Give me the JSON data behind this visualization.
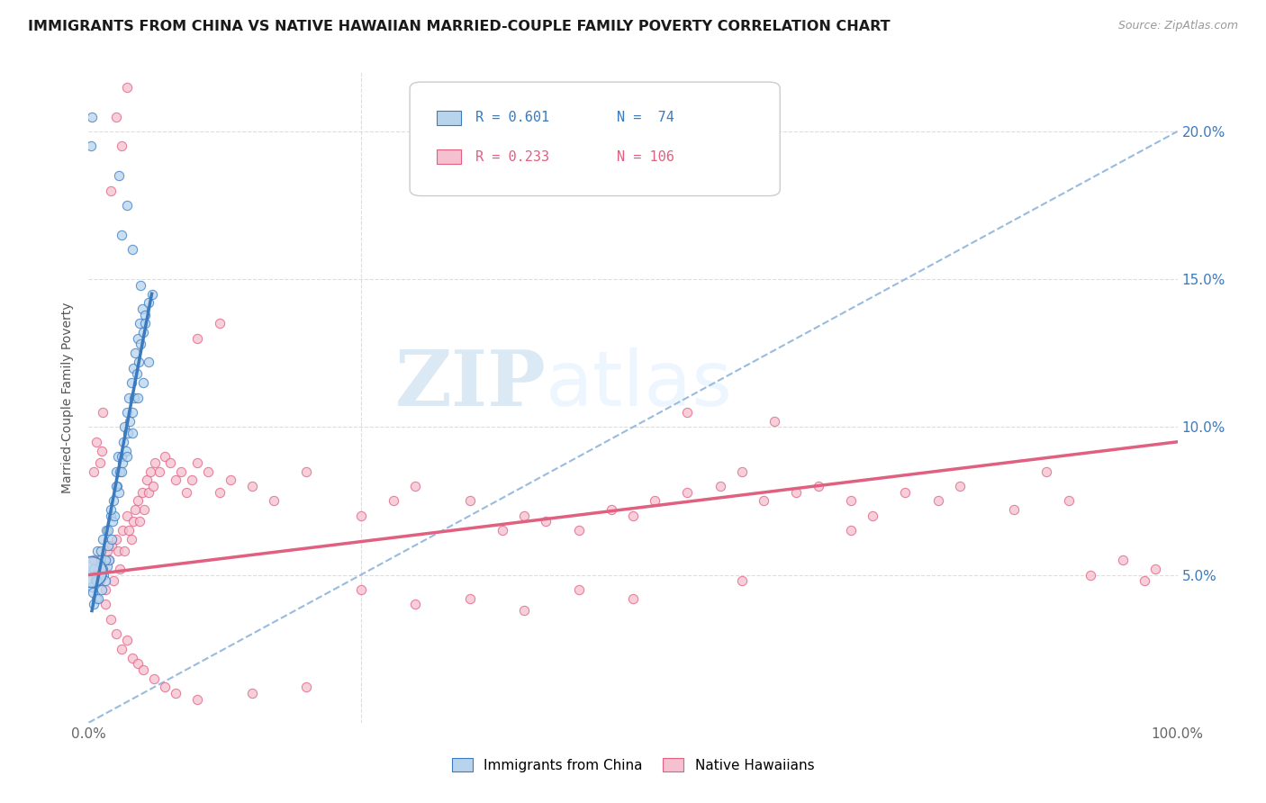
{
  "title": "IMMIGRANTS FROM CHINA VS NATIVE HAWAIIAN MARRIED-COUPLE FAMILY POVERTY CORRELATION CHART",
  "source": "Source: ZipAtlas.com",
  "ylabel": "Married-Couple Family Poverty",
  "legend_label_blue": "Immigrants from China",
  "legend_label_pink": "Native Hawaiians",
  "r_blue": "R = 0.601",
  "n_blue": "N =  74",
  "r_pink": "R = 0.233",
  "n_pink": "N = 106",
  "blue_color": "#b8d4ed",
  "blue_line_color": "#3a7abf",
  "pink_color": "#f5c0d0",
  "pink_line_color": "#e06080",
  "watermark_zip": "ZIP",
  "watermark_atlas": "atlas",
  "background_color": "#ffffff",
  "blue_scatter": [
    [
      0.5,
      5.2
    ],
    [
      0.6,
      4.8
    ],
    [
      0.7,
      4.2
    ],
    [
      0.8,
      5.8
    ],
    [
      1.0,
      5.0
    ],
    [
      1.1,
      5.5
    ],
    [
      1.2,
      4.5
    ],
    [
      1.3,
      6.2
    ],
    [
      1.4,
      5.0
    ],
    [
      1.5,
      4.8
    ],
    [
      1.6,
      6.5
    ],
    [
      1.7,
      5.3
    ],
    [
      1.8,
      6.0
    ],
    [
      1.9,
      5.5
    ],
    [
      2.0,
      7.0
    ],
    [
      2.1,
      6.2
    ],
    [
      2.2,
      6.8
    ],
    [
      2.3,
      7.5
    ],
    [
      2.4,
      7.0
    ],
    [
      2.5,
      8.5
    ],
    [
      2.6,
      8.0
    ],
    [
      2.7,
      9.0
    ],
    [
      2.8,
      7.8
    ],
    [
      2.9,
      8.5
    ],
    [
      3.0,
      9.0
    ],
    [
      3.1,
      8.8
    ],
    [
      3.2,
      9.5
    ],
    [
      3.3,
      10.0
    ],
    [
      3.4,
      9.2
    ],
    [
      3.5,
      10.5
    ],
    [
      3.6,
      9.8
    ],
    [
      3.7,
      11.0
    ],
    [
      3.8,
      10.2
    ],
    [
      3.9,
      11.5
    ],
    [
      4.0,
      10.5
    ],
    [
      4.1,
      12.0
    ],
    [
      4.2,
      11.0
    ],
    [
      4.3,
      12.5
    ],
    [
      4.4,
      11.8
    ],
    [
      4.5,
      13.0
    ],
    [
      4.6,
      12.2
    ],
    [
      4.7,
      13.5
    ],
    [
      4.8,
      12.8
    ],
    [
      4.9,
      14.0
    ],
    [
      5.0,
      13.2
    ],
    [
      5.2,
      13.8
    ],
    [
      5.5,
      14.2
    ],
    [
      5.8,
      14.5
    ],
    [
      0.3,
      4.6
    ],
    [
      0.4,
      4.4
    ],
    [
      0.5,
      4.0
    ],
    [
      0.6,
      5.0
    ],
    [
      0.7,
      4.8
    ],
    [
      0.9,
      4.2
    ],
    [
      1.1,
      5.8
    ],
    [
      1.3,
      5.2
    ],
    [
      1.5,
      5.5
    ],
    [
      1.8,
      6.5
    ],
    [
      2.0,
      7.2
    ],
    [
      2.5,
      8.0
    ],
    [
      3.0,
      8.5
    ],
    [
      3.5,
      9.0
    ],
    [
      4.0,
      9.8
    ],
    [
      4.5,
      11.0
    ],
    [
      5.0,
      11.5
    ],
    [
      5.5,
      12.2
    ],
    [
      2.8,
      18.5
    ],
    [
      3.5,
      17.5
    ],
    [
      3.0,
      16.5
    ],
    [
      4.0,
      16.0
    ],
    [
      4.8,
      14.8
    ],
    [
      5.2,
      13.5
    ],
    [
      0.2,
      19.5
    ],
    [
      0.3,
      20.5
    ]
  ],
  "pink_scatter": [
    [
      0.5,
      5.5
    ],
    [
      0.8,
      5.0
    ],
    [
      1.0,
      4.8
    ],
    [
      1.2,
      5.2
    ],
    [
      1.5,
      4.5
    ],
    [
      1.7,
      5.8
    ],
    [
      1.9,
      5.5
    ],
    [
      2.1,
      6.0
    ],
    [
      2.3,
      4.8
    ],
    [
      2.5,
      6.2
    ],
    [
      2.7,
      5.8
    ],
    [
      2.9,
      5.2
    ],
    [
      3.1,
      6.5
    ],
    [
      3.3,
      5.8
    ],
    [
      3.5,
      7.0
    ],
    [
      3.7,
      6.5
    ],
    [
      3.9,
      6.2
    ],
    [
      4.1,
      6.8
    ],
    [
      4.3,
      7.2
    ],
    [
      4.5,
      7.5
    ],
    [
      4.7,
      6.8
    ],
    [
      4.9,
      7.8
    ],
    [
      5.1,
      7.2
    ],
    [
      5.3,
      8.2
    ],
    [
      5.5,
      7.8
    ],
    [
      5.7,
      8.5
    ],
    [
      5.9,
      8.0
    ],
    [
      6.1,
      8.8
    ],
    [
      6.5,
      8.5
    ],
    [
      7.0,
      9.0
    ],
    [
      7.5,
      8.8
    ],
    [
      8.0,
      8.2
    ],
    [
      8.5,
      8.5
    ],
    [
      9.0,
      7.8
    ],
    [
      9.5,
      8.2
    ],
    [
      10.0,
      8.8
    ],
    [
      11.0,
      8.5
    ],
    [
      12.0,
      7.8
    ],
    [
      13.0,
      8.2
    ],
    [
      15.0,
      8.0
    ],
    [
      17.0,
      7.5
    ],
    [
      20.0,
      8.5
    ],
    [
      25.0,
      7.0
    ],
    [
      28.0,
      7.5
    ],
    [
      30.0,
      8.0
    ],
    [
      35.0,
      7.5
    ],
    [
      38.0,
      6.5
    ],
    [
      40.0,
      7.0
    ],
    [
      42.0,
      6.8
    ],
    [
      45.0,
      6.5
    ],
    [
      48.0,
      7.2
    ],
    [
      50.0,
      7.0
    ],
    [
      52.0,
      7.5
    ],
    [
      55.0,
      7.8
    ],
    [
      58.0,
      8.0
    ],
    [
      60.0,
      8.5
    ],
    [
      62.0,
      7.5
    ],
    [
      65.0,
      7.8
    ],
    [
      67.0,
      8.0
    ],
    [
      70.0,
      7.5
    ],
    [
      72.0,
      7.0
    ],
    [
      75.0,
      7.8
    ],
    [
      78.0,
      7.5
    ],
    [
      80.0,
      8.0
    ],
    [
      85.0,
      7.2
    ],
    [
      88.0,
      8.5
    ],
    [
      90.0,
      7.5
    ],
    [
      92.0,
      5.0
    ],
    [
      95.0,
      5.5
    ],
    [
      97.0,
      4.8
    ],
    [
      98.0,
      5.2
    ],
    [
      1.5,
      4.0
    ],
    [
      2.0,
      3.5
    ],
    [
      2.5,
      3.0
    ],
    [
      3.0,
      2.5
    ],
    [
      3.5,
      2.8
    ],
    [
      4.0,
      2.2
    ],
    [
      4.5,
      2.0
    ],
    [
      5.0,
      1.8
    ],
    [
      6.0,
      1.5
    ],
    [
      7.0,
      1.2
    ],
    [
      8.0,
      1.0
    ],
    [
      10.0,
      0.8
    ],
    [
      15.0,
      1.0
    ],
    [
      20.0,
      1.2
    ],
    [
      2.5,
      20.5
    ],
    [
      3.0,
      19.5
    ],
    [
      3.5,
      21.5
    ],
    [
      2.0,
      18.0
    ],
    [
      1.0,
      8.8
    ],
    [
      1.2,
      9.2
    ],
    [
      25.0,
      4.5
    ],
    [
      30.0,
      4.0
    ],
    [
      35.0,
      4.2
    ],
    [
      40.0,
      3.8
    ],
    [
      45.0,
      4.5
    ],
    [
      50.0,
      4.2
    ],
    [
      60.0,
      4.8
    ],
    [
      70.0,
      6.5
    ],
    [
      10.0,
      13.0
    ],
    [
      12.0,
      13.5
    ],
    [
      0.5,
      8.5
    ],
    [
      0.7,
      9.5
    ],
    [
      1.3,
      10.5
    ],
    [
      55.0,
      10.5
    ],
    [
      63.0,
      10.2
    ]
  ],
  "blue_dot_size": 55,
  "pink_dot_size": 55,
  "xlim_pct": [
    0.0,
    100.0
  ],
  "ylim_pct": [
    0.0,
    22.0
  ],
  "ytick_pct": [
    5.0,
    10.0,
    15.0,
    20.0
  ],
  "xtick_pct": [
    0.0,
    25.0,
    50.0,
    75.0,
    100.0
  ],
  "blue_line_x": [
    0.3,
    5.8
  ],
  "blue_line_y_intercept": 3.2,
  "blue_line_slope": 1.95,
  "pink_line_x": [
    0.0,
    100.0
  ],
  "pink_line_y_intercept": 5.0,
  "pink_line_slope": 0.045,
  "dash_line_x": [
    0.0,
    100.0
  ],
  "dash_line_y": [
    0.0,
    20.0
  ]
}
